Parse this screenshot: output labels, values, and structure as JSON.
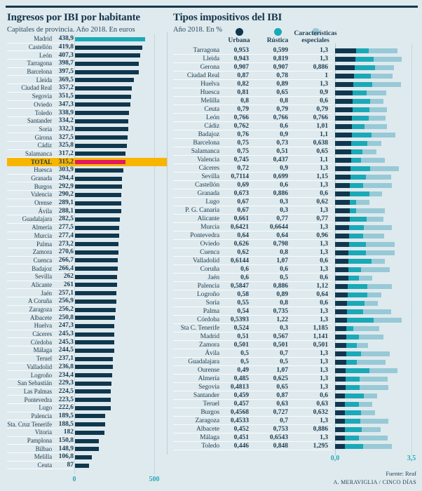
{
  "footer": {
    "source": "Fuente: Reaf",
    "credit": "A. MERAVIGLIA / CINCO DÍAS"
  },
  "chart_data": [
    {
      "type": "bar",
      "orientation": "horizontal",
      "title": "Ingresos por IBI por habitante",
      "subtitle": "Capitales de provincia. Año 2018. En euros",
      "xlim": [
        0,
        500
      ],
      "xticks": [
        "0",
        "500"
      ],
      "bar_color": "#10374d",
      "highlights": [
        {
          "index": 0,
          "bar_color": "#1aabb9"
        },
        {
          "index": 15,
          "bar_color": "#e3195f",
          "row_bg": "#f8b500"
        }
      ],
      "categories": [
        "Madrid",
        "Castellón",
        "León",
        "Tarragona",
        "Barcelona",
        "Lleida",
        "Ciudad Real",
        "Segovia",
        "Oviedo",
        "Toledo",
        "Santander",
        "Soria",
        "Girona",
        "Cádiz",
        "Salamanca",
        "TOTAL",
        "Huesca",
        "Granada",
        "Burgos",
        "Valencia",
        "Orense",
        "Ávila",
        "Guadalajara",
        "Almería",
        "Murcia",
        "Palma",
        "Zamora",
        "Cuenca",
        "Badajoz",
        "Sevilla",
        "Alicante",
        "Jaén",
        "A Coruña",
        "Zaragoza",
        "Albacete",
        "Huelva",
        "Cáceres",
        "Córdoba",
        "Málaga",
        "Teruel",
        "Valladolid",
        "Logroño",
        "San Sebastián",
        "Las Palmas",
        "Pontevedra",
        "Lugo",
        "Palencia",
        "Sta. Cruz Tenerife",
        "Vitoria",
        "Pamplona",
        "Bilbao",
        "Melilla",
        "Ceuta"
      ],
      "values": [
        438.9,
        419.8,
        407.3,
        398.7,
        397.5,
        369.5,
        357.2,
        351.5,
        347.3,
        338.9,
        334.2,
        332.3,
        327.5,
        325.8,
        317.2,
        315.2,
        303.9,
        294.4,
        292.9,
        290.2,
        289.1,
        288.1,
        282.5,
        277.5,
        277.4,
        273.2,
        270.6,
        266.7,
        266.4,
        262,
        261,
        257.1,
        256.9,
        256.2,
        250.8,
        247.3,
        245.3,
        245.3,
        244.5,
        237.1,
        236.8,
        234.4,
        229.3,
        224.5,
        223.5,
        222.6,
        189.5,
        188.5,
        182,
        150.8,
        148.9,
        106.8,
        87
      ]
    },
    {
      "type": "bar",
      "subtype": "stacked",
      "orientation": "horizontal",
      "title": "Tipos impositivos del IBI",
      "subtitle": "Año 2018. En %",
      "xlim": [
        0,
        3.5
      ],
      "xticks": [
        "0,0",
        "3,5"
      ],
      "legend_position": "top",
      "categories": [
        "Tarragona",
        "Lleida",
        "Gerona",
        "Ciudad Real",
        "Huelva",
        "Huesca",
        "Melilla",
        "Ceuta",
        "León",
        "Cádiz",
        "Badajoz",
        "Barcelona",
        "Salamanca",
        "Valencia",
        "Cáceres",
        "Sevilla",
        "Castellón",
        "Granada",
        "Lugo",
        "P. G. Canaria",
        "Alicante",
        "Murcia",
        "Pontevedra",
        "Oviedo",
        "Cuenca",
        "Valladolid",
        "Coruña",
        "Jaén",
        "Palencia",
        "Logroño",
        "Soria",
        "Palma",
        "Córdoba",
        "Sta C. Tenerife",
        "Madrid",
        "Zamora",
        "Ávila",
        "Guadalajara",
        "Ourense",
        "Almería",
        "Segovia",
        "Santander",
        "Teruel",
        "Burgos",
        "Zaragoza",
        "Albacete",
        "Málaga",
        "Toledo"
      ],
      "series": [
        {
          "name": "Urbana",
          "color": "#10374d",
          "values": [
            0.953,
            0.943,
            0.907,
            0.87,
            0.82,
            0.81,
            0.8,
            0.79,
            0.766,
            0.762,
            0.76,
            0.75,
            0.75,
            0.745,
            0.72,
            0.7114,
            0.69,
            0.673,
            0.67,
            0.67,
            0.661,
            0.6421,
            0.64,
            0.626,
            0.62,
            0.6144,
            0.6,
            0.6,
            0.5847,
            0.58,
            0.55,
            0.54,
            0.5393,
            0.524,
            0.51,
            0.501,
            0.5,
            0.5,
            0.49,
            0.485,
            0.4813,
            0.459,
            0.457,
            0.4568,
            0.4533,
            0.452,
            0.451,
            0.446
          ]
        },
        {
          "name": "Rústica",
          "color": "#1aa9b7",
          "values": [
            0.599,
            0.819,
            0.907,
            0.78,
            0.89,
            0.65,
            0.8,
            0.79,
            0.766,
            0.6,
            0.9,
            0.73,
            0.51,
            0.437,
            0.9,
            0.699,
            0.6,
            0.886,
            0.3,
            0.3,
            0.77,
            0.6644,
            0.64,
            0.798,
            0.8,
            1.07,
            0.6,
            0.5,
            0.886,
            0.89,
            0.8,
            0.735,
            1.22,
            0.3,
            0.567,
            0.501,
            0.7,
            0.5,
            1.07,
            0.625,
            0.65,
            0.87,
            0.63,
            0.727,
            0.7,
            0.753,
            0.6543,
            0.848
          ]
        },
        {
          "name": "Características especiales",
          "color": "#98c9d6",
          "values": [
            1.3,
            1.3,
            0.886,
            1,
            1.3,
            0.9,
            0.6,
            0.79,
            0.766,
            1.01,
            1.1,
            0.638,
            0.65,
            1.1,
            1.3,
            1.15,
            1.3,
            0.6,
            0.62,
            1.3,
            0.77,
            1.3,
            0.96,
            1.3,
            1.3,
            0.6,
            1.3,
            0.6,
            1.12,
            0.64,
            0.6,
            1.3,
            1.3,
            1.185,
            1.141,
            0.501,
            1.3,
            1.3,
            1.3,
            1.3,
            1.3,
            0.6,
            0.63,
            0.632,
            1.3,
            0.886,
            1.3,
            1.295
          ]
        }
      ]
    }
  ]
}
